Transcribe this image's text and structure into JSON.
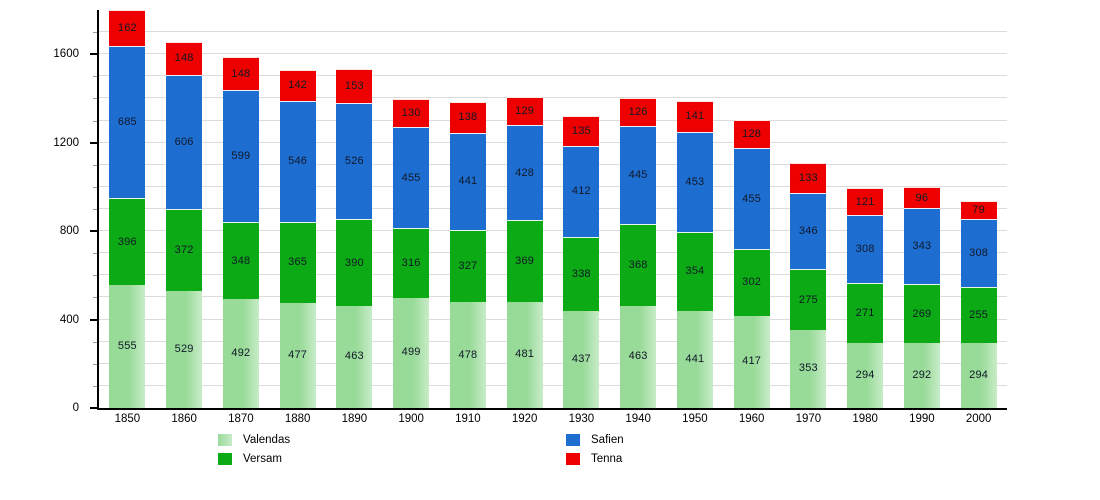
{
  "chart_data": {
    "type": "bar",
    "stacked": true,
    "title": "",
    "xlabel": "",
    "ylabel": "",
    "categories": [
      "1850",
      "1860",
      "1870",
      "1880",
      "1890",
      "1900",
      "1910",
      "1920",
      "1930",
      "1940",
      "1950",
      "1960",
      "1970",
      "1980",
      "1990",
      "2000"
    ],
    "series": [
      {
        "name": "Valendas",
        "color": "#98da98",
        "color_fade": "#c8ecc8",
        "values": [
          555,
          529,
          492,
          477,
          463,
          499,
          478,
          481,
          437,
          463,
          441,
          417,
          353,
          294,
          292,
          294
        ]
      },
      {
        "name": "Versam",
        "color": "#0caa14",
        "values": [
          396,
          372,
          348,
          365,
          390,
          316,
          327,
          369,
          338,
          368,
          354,
          302,
          275,
          271,
          269,
          255
        ]
      },
      {
        "name": "Safien",
        "color": "#1e6ed2",
        "values": [
          685,
          606,
          599,
          546,
          526,
          455,
          441,
          428,
          412,
          445,
          453,
          455,
          346,
          308,
          343,
          308
        ]
      },
      {
        "name": "Tenna",
        "color": "#ee0000",
        "values": [
          162,
          148,
          148,
          142,
          153,
          130,
          138,
          129,
          135,
          126,
          141,
          128,
          133,
          121,
          96,
          79
        ]
      }
    ],
    "ylim": [
      0,
      1800
    ],
    "yticks": [
      "0",
      "400",
      "800",
      "1200",
      "1600"
    ],
    "minor_grid_step": 100,
    "grid": true,
    "legend_position": "bottom",
    "legend_columns": [
      [
        "Valendas",
        "Versam"
      ],
      [
        "Safien",
        "Tenna"
      ]
    ]
  }
}
